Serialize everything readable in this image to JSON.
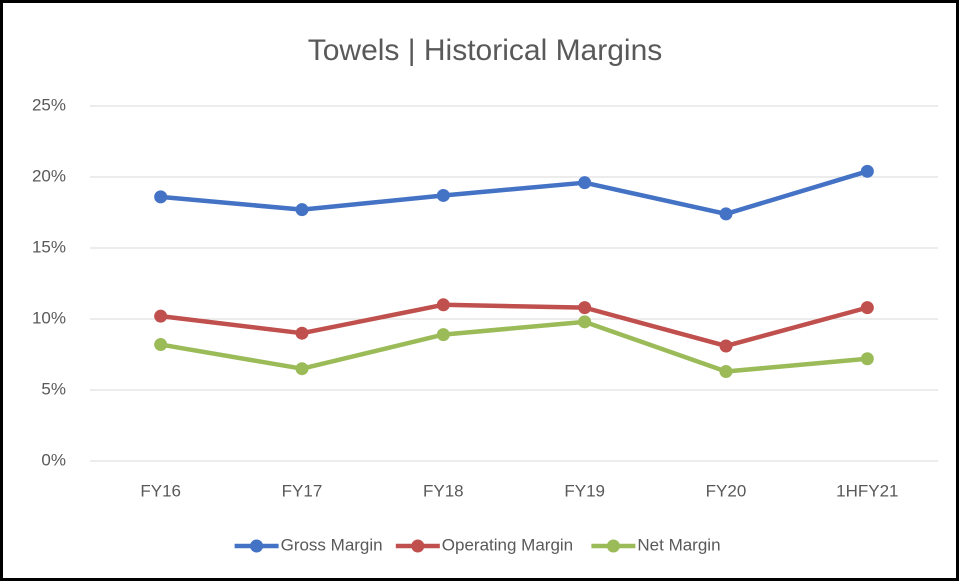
{
  "chart_data": {
    "type": "line",
    "title": "Towels | Historical Margins",
    "categories": [
      "FY16",
      "FY17",
      "FY18",
      "FY19",
      "FY20",
      "1HFY21"
    ],
    "series": [
      {
        "name": "Gross Margin",
        "color": "#4472c4",
        "values": [
          18.6,
          17.7,
          18.7,
          19.6,
          17.4,
          20.4
        ]
      },
      {
        "name": "Operating Margin",
        "color": "#c0504d",
        "values": [
          10.2,
          9.0,
          11.0,
          10.8,
          8.1,
          10.8
        ]
      },
      {
        "name": "Net Margin",
        "color": "#9bbb59",
        "values": [
          8.2,
          6.5,
          8.9,
          9.8,
          6.3,
          7.2
        ]
      }
    ],
    "ylim": [
      0,
      25
    ],
    "yticks": [
      {
        "value": 0,
        "label": "0%"
      },
      {
        "value": 5,
        "label": "5%"
      },
      {
        "value": 10,
        "label": "10%"
      },
      {
        "value": 15,
        "label": "15%"
      },
      {
        "value": 20,
        "label": "20%"
      },
      {
        "value": 25,
        "label": "25%"
      }
    ],
    "grid": true,
    "legend": "bottom"
  }
}
